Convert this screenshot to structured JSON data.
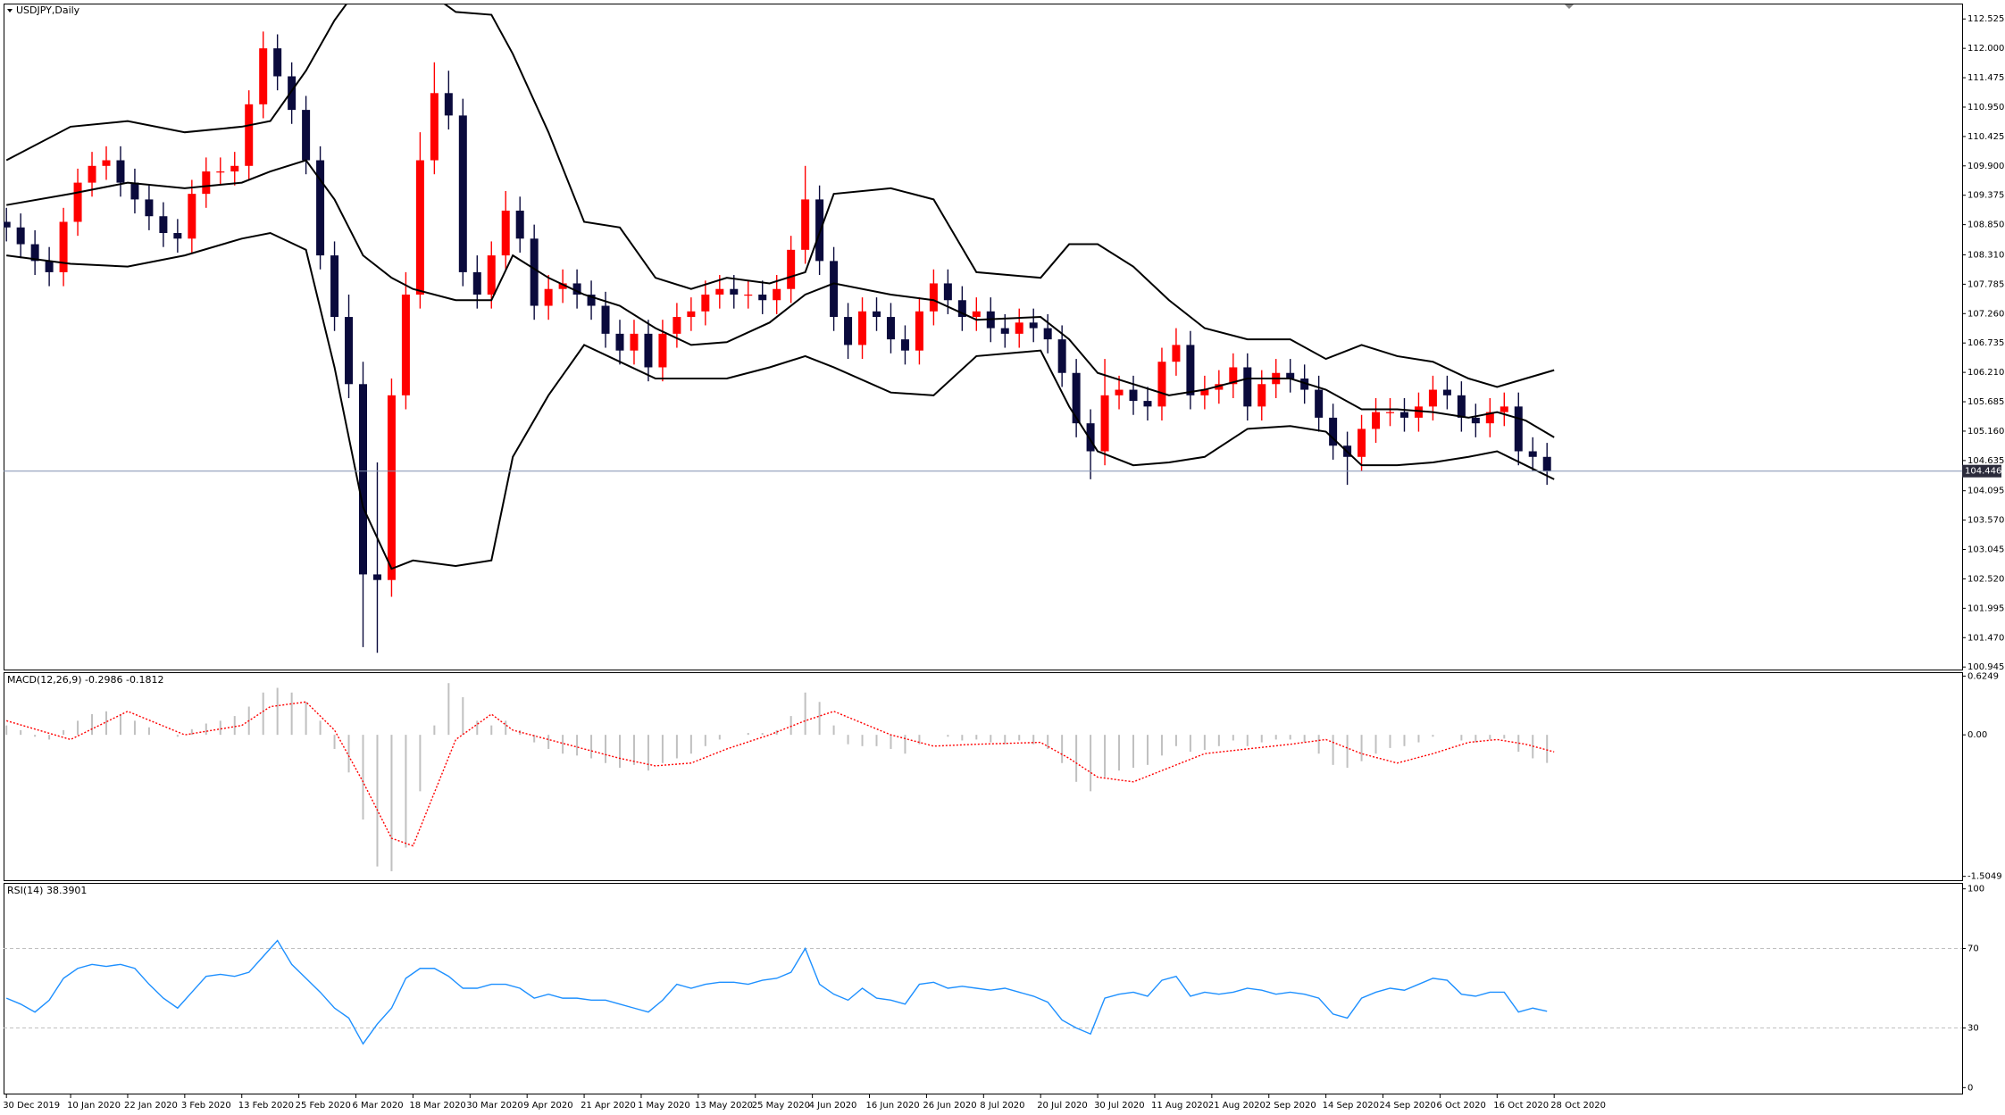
{
  "chart_data": [
    {
      "type": "candlestick",
      "title": "USDJPY,Daily",
      "xlim": [
        -0.4,
        274.2
      ],
      "ylim": [
        100.9,
        112.8
      ],
      "yticks": [
        112.525,
        {
          "value": 112.0,
          "label": "112.000"
        },
        111.475,
        {
          "value": 110.95,
          "label": "110.950"
        },
        110.425,
        {
          "value": 109.9,
          "label": "109.900"
        },
        109.375,
        {
          "value": 108.85,
          "label": "108.850"
        },
        {
          "value": 108.31,
          "label": "108.310"
        },
        107.785,
        {
          "value": 107.26,
          "label": "107.260"
        },
        106.735,
        {
          "value": 106.21,
          "label": "106.210"
        },
        105.685,
        {
          "value": 105.16,
          "label": "105.160"
        },
        104.635,
        104.095,
        {
          "value": 103.57,
          "label": "103.570"
        },
        103.045,
        {
          "value": 102.52,
          "label": "102.520"
        },
        101.995,
        {
          "value": 101.47,
          "label": "101.470"
        },
        100.945
      ],
      "current_price": 104.446,
      "price_line_color": "#8090b0",
      "up_color": "#ff0000",
      "down_color": "#0a0a3c",
      "x": [
        0,
        2,
        4,
        6,
        8,
        10,
        12,
        14,
        16,
        18,
        20,
        22,
        24,
        26,
        28,
        30,
        32,
        34,
        36,
        38,
        40,
        42,
        44,
        46,
        48,
        50,
        52,
        54,
        56,
        58,
        60,
        62,
        64,
        66,
        68,
        70,
        72,
        74,
        76,
        78,
        80,
        82,
        84,
        86,
        88,
        90,
        92,
        94,
        96,
        98,
        100,
        102,
        104,
        106,
        108,
        110,
        112,
        114,
        116,
        118,
        120,
        122,
        124,
        126,
        128,
        130,
        132,
        134,
        136,
        138,
        140,
        142,
        144,
        146,
        148,
        150,
        152,
        154,
        156,
        158,
        160,
        162,
        164,
        166,
        168,
        170,
        172,
        174,
        176,
        178,
        180,
        182,
        184,
        186,
        188,
        190,
        192,
        194,
        196,
        198,
        200,
        202,
        204,
        206,
        208,
        210,
        212,
        214,
        216
      ],
      "open": [
        108.9,
        108.8,
        108.5,
        108.2,
        108.0,
        108.9,
        109.6,
        109.9,
        110.0,
        109.6,
        109.3,
        109.0,
        108.7,
        108.6,
        109.4,
        109.8,
        109.8,
        109.9,
        111.0,
        112.0,
        111.5,
        110.9,
        110.0,
        108.3,
        107.2,
        106.0,
        102.6,
        102.5,
        105.8,
        107.6,
        110.0,
        111.2,
        110.8,
        108.0,
        107.6,
        108.3,
        109.1,
        108.6,
        107.4,
        107.7,
        107.8,
        107.6,
        107.4,
        106.9,
        106.6,
        106.9,
        106.3,
        106.9,
        107.2,
        107.3,
        107.6,
        107.7,
        107.6,
        107.6,
        107.5,
        107.7,
        108.4,
        109.3,
        108.2,
        107.2,
        106.7,
        107.3,
        107.2,
        106.8,
        106.6,
        107.3,
        107.8,
        107.5,
        107.2,
        107.3,
        107.0,
        106.9,
        107.1,
        107.0,
        106.8,
        106.2,
        105.3,
        104.8,
        105.8,
        105.9,
        105.7,
        105.6,
        106.4,
        106.7,
        105.8,
        105.9,
        106.0,
        106.3,
        105.6,
        106.0,
        106.2,
        106.1,
        105.9,
        105.4,
        104.9,
        104.7,
        105.2,
        105.5,
        105.5,
        105.4,
        105.6,
        105.9,
        105.8,
        105.4,
        105.3,
        105.5,
        105.6,
        104.8,
        104.7
      ],
      "high": [
        109.15,
        109.05,
        108.75,
        108.45,
        109.15,
        109.85,
        110.15,
        110.25,
        110.25,
        109.85,
        109.55,
        109.25,
        108.95,
        109.65,
        110.05,
        110.05,
        110.15,
        111.25,
        112.3,
        112.25,
        111.75,
        111.15,
        110.25,
        108.55,
        107.6,
        106.4,
        104.6,
        106.1,
        108.0,
        110.5,
        111.75,
        111.6,
        111.1,
        108.3,
        108.55,
        109.45,
        109.35,
        108.85,
        107.95,
        108.05,
        108.05,
        107.85,
        107.65,
        107.15,
        107.15,
        107.15,
        107.15,
        107.45,
        107.55,
        107.85,
        107.95,
        107.95,
        107.85,
        107.85,
        107.95,
        108.65,
        109.9,
        109.55,
        108.45,
        107.45,
        107.55,
        107.55,
        107.45,
        107.05,
        107.55,
        108.05,
        108.05,
        107.75,
        107.55,
        107.55,
        107.25,
        107.35,
        107.35,
        107.25,
        107.05,
        106.45,
        105.55,
        106.45,
        106.15,
        106.15,
        105.95,
        106.65,
        107.0,
        106.95,
        106.15,
        106.25,
        106.55,
        106.55,
        106.25,
        106.45,
        106.45,
        106.35,
        106.15,
        105.65,
        105.15,
        105.45,
        105.75,
        105.75,
        105.75,
        105.85,
        106.15,
        106.15,
        106.05,
        105.65,
        105.75,
        105.85,
        105.85,
        105.05,
        104.95
      ],
      "low": [
        108.55,
        108.25,
        107.95,
        107.75,
        107.75,
        108.65,
        109.35,
        109.65,
        109.35,
        109.05,
        108.75,
        108.45,
        108.35,
        108.35,
        109.15,
        109.55,
        109.55,
        109.65,
        110.75,
        111.25,
        110.65,
        109.75,
        108.05,
        106.95,
        105.75,
        101.3,
        101.2,
        102.2,
        105.55,
        107.35,
        109.75,
        110.55,
        107.75,
        107.35,
        107.35,
        108.05,
        108.35,
        107.15,
        107.15,
        107.45,
        107.35,
        107.15,
        106.65,
        106.35,
        106.35,
        106.05,
        106.05,
        106.65,
        106.95,
        107.05,
        107.35,
        107.35,
        107.35,
        107.25,
        107.25,
        107.45,
        108.15,
        107.95,
        106.95,
        106.45,
        106.45,
        106.95,
        106.55,
        106.35,
        106.35,
        107.05,
        107.25,
        106.95,
        106.95,
        106.75,
        106.65,
        106.65,
        106.75,
        106.55,
        105.95,
        105.05,
        104.3,
        104.55,
        105.55,
        105.45,
        105.35,
        105.35,
        106.15,
        105.55,
        105.55,
        105.65,
        105.75,
        105.35,
        105.35,
        105.75,
        105.85,
        105.65,
        105.15,
        104.65,
        104.2,
        104.45,
        104.95,
        105.25,
        105.15,
        105.15,
        105.35,
        105.55,
        105.15,
        105.05,
        105.05,
        105.25,
        104.55,
        104.45,
        104.2
      ],
      "close": [
        108.8,
        108.5,
        108.2,
        108.0,
        108.9,
        109.6,
        109.9,
        110.0,
        109.6,
        109.3,
        109.0,
        108.7,
        108.6,
        109.4,
        109.8,
        109.8,
        109.9,
        111.0,
        112.0,
        111.5,
        110.9,
        110.0,
        108.3,
        107.2,
        106.0,
        102.6,
        102.5,
        105.8,
        107.6,
        110.0,
        111.2,
        110.8,
        108.0,
        107.6,
        108.3,
        109.1,
        108.6,
        107.4,
        107.7,
        107.8,
        107.6,
        107.4,
        106.9,
        106.6,
        106.9,
        106.3,
        106.9,
        107.2,
        107.3,
        107.6,
        107.7,
        107.6,
        107.6,
        107.5,
        107.7,
        108.4,
        109.3,
        108.2,
        107.2,
        106.7,
        107.3,
        107.2,
        106.8,
        106.6,
        107.3,
        107.8,
        107.5,
        107.2,
        107.3,
        107.0,
        106.9,
        107.1,
        107.0,
        106.8,
        106.2,
        105.3,
        104.8,
        105.8,
        105.9,
        105.7,
        105.6,
        106.4,
        106.7,
        105.8,
        105.9,
        106.0,
        106.3,
        105.6,
        106.0,
        106.2,
        106.1,
        105.9,
        105.4,
        104.9,
        104.7,
        105.2,
        105.5,
        105.5,
        105.4,
        105.6,
        105.9,
        105.8,
        105.4,
        105.3,
        105.5,
        105.6,
        104.8,
        104.7,
        104.45
      ],
      "band_x": [
        0,
        9,
        17,
        25,
        33,
        37,
        42,
        46,
        50,
        54,
        57,
        63,
        68,
        71,
        76,
        81,
        86,
        91,
        96,
        101,
        107,
        112,
        116,
        124,
        130,
        136,
        145,
        149,
        153,
        158,
        163,
        168,
        174,
        180,
        185,
        190,
        195,
        200,
        205,
        209,
        213,
        217
      ],
      "bands": [
        {
          "color": "#000000",
          "values": [
            110.0,
            110.6,
            110.7,
            110.5,
            110.6,
            110.7,
            111.6,
            112.5,
            113.2,
            113.5,
            113.2,
            112.65,
            112.6,
            111.9,
            110.5,
            108.9,
            108.8,
            107.9,
            107.7,
            107.9,
            107.8,
            108.0,
            109.4,
            109.5,
            109.3,
            108.0,
            107.9,
            108.5,
            108.5,
            108.1,
            107.5,
            107.0,
            106.8,
            106.8,
            106.45,
            106.7,
            106.5,
            106.4,
            106.1,
            105.95,
            106.1,
            106.25
          ]
        },
        {
          "color": "#000000",
          "values": [
            109.2,
            109.4,
            109.6,
            109.5,
            109.6,
            109.8,
            110.0,
            109.3,
            108.3,
            107.9,
            107.7,
            107.5,
            107.5,
            108.3,
            107.9,
            107.6,
            107.4,
            107.0,
            106.7,
            106.75,
            107.1,
            107.6,
            107.8,
            107.6,
            107.5,
            107.15,
            107.2,
            106.8,
            106.2,
            106.0,
            105.8,
            105.9,
            106.1,
            106.1,
            105.9,
            105.55,
            105.55,
            105.5,
            105.4,
            105.5,
            105.35,
            105.05
          ]
        },
        {
          "color": "#000000",
          "values": [
            108.3,
            108.15,
            108.1,
            108.3,
            108.6,
            108.7,
            108.4,
            106.3,
            103.8,
            102.7,
            102.85,
            102.75,
            102.85,
            104.7,
            105.8,
            106.7,
            106.4,
            106.1,
            106.1,
            106.1,
            106.3,
            106.5,
            106.3,
            105.85,
            105.8,
            106.5,
            106.6,
            105.6,
            104.8,
            104.55,
            104.6,
            104.7,
            105.2,
            105.25,
            105.15,
            104.55,
            104.55,
            104.6,
            104.7,
            104.8,
            104.55,
            104.3
          ]
        }
      ]
    },
    {
      "type": "macd",
      "title": "MACD(12,26,9) -0.2986 -0.1812",
      "xlim": [
        -0.4,
        274.2
      ],
      "ylim": [
        -1.546,
        0.666
      ],
      "yticks": [
        0.6249,
        {
          "value": 0,
          "label": "0.00"
        },
        -1.5049
      ],
      "hist_color": "#c0c0c0",
      "signal_color": "#ff0000",
      "histogram": [
        0.1,
        0.05,
        -0.02,
        -0.05,
        0.05,
        0.15,
        0.22,
        0.25,
        0.22,
        0.15,
        0.08,
        0.0,
        -0.02,
        0.06,
        0.12,
        0.15,
        0.2,
        0.3,
        0.45,
        0.5,
        0.45,
        0.35,
        0.15,
        -0.15,
        -0.4,
        -0.9,
        -1.4,
        -1.45,
        -1.2,
        -0.6,
        0.1,
        0.55,
        0.4,
        0.15,
        0.1,
        0.15,
        0.05,
        -0.08,
        -0.15,
        -0.2,
        -0.22,
        -0.25,
        -0.3,
        -0.35,
        -0.32,
        -0.38,
        -0.3,
        -0.25,
        -0.2,
        -0.12,
        -0.05,
        0.0,
        0.02,
        0.02,
        0.05,
        0.2,
        0.45,
        0.35,
        0.1,
        -0.1,
        -0.12,
        -0.12,
        -0.15,
        -0.2,
        -0.1,
        0.0,
        -0.02,
        -0.06,
        -0.05,
        -0.08,
        -0.1,
        -0.06,
        -0.1,
        -0.15,
        -0.3,
        -0.5,
        -0.6,
        -0.45,
        -0.38,
        -0.35,
        -0.32,
        -0.22,
        -0.12,
        -0.18,
        -0.16,
        -0.12,
        -0.06,
        -0.12,
        -0.08,
        -0.05,
        -0.05,
        -0.08,
        -0.2,
        -0.32,
        -0.35,
        -0.28,
        -0.2,
        -0.14,
        -0.12,
        -0.08,
        -0.02,
        0.0,
        -0.06,
        -0.08,
        -0.05,
        -0.04,
        -0.18,
        -0.25,
        -0.2986
      ],
      "signal": [
        0.15,
        -0.05,
        0.25,
        0.0,
        0.1,
        0.3,
        0.35,
        0.05,
        -0.5,
        -1.1,
        -1.18,
        -0.05,
        0.22,
        0.05,
        -0.05,
        -0.15,
        -0.25,
        -0.33,
        -0.3,
        -0.15,
        0.0,
        0.15,
        0.25,
        0.0,
        -0.12,
        -0.1,
        -0.08,
        -0.25,
        -0.45,
        -0.5,
        -0.35,
        -0.2,
        -0.15,
        -0.1,
        -0.05,
        -0.2,
        -0.3,
        -0.2,
        -0.08,
        -0.05,
        -0.1,
        -0.1812
      ]
    },
    {
      "type": "line",
      "title": "RSI(14) 38.3901",
      "xlim": [
        -0.4,
        274.2
      ],
      "ylim": [
        -3,
        103
      ],
      "yticks": [
        100,
        70,
        30,
        0
      ],
      "levels": [
        70,
        30
      ],
      "color": "#1e90ff",
      "values": [
        45,
        42,
        38,
        44,
        55,
        60,
        62,
        61,
        62,
        60,
        52,
        45,
        40,
        48,
        56,
        57,
        56,
        58,
        66,
        74,
        62,
        55,
        48,
        40,
        35,
        22,
        32,
        40,
        55,
        60,
        60,
        56,
        50,
        50,
        52,
        52,
        50,
        45,
        47,
        45,
        45,
        44,
        44,
        42,
        40,
        38,
        44,
        52,
        50,
        52,
        53,
        53,
        52,
        54,
        55,
        58,
        70,
        52,
        47,
        44,
        50,
        45,
        44,
        42,
        52,
        53,
        50,
        51,
        50,
        49,
        50,
        48,
        46,
        43,
        34,
        30,
        27,
        45,
        47,
        48,
        46,
        54,
        56,
        46,
        48,
        47,
        48,
        50,
        49,
        47,
        48,
        47,
        45,
        37,
        35,
        45,
        48,
        50,
        49,
        52,
        55,
        54,
        47,
        46,
        48,
        48,
        38,
        40,
        38.39
      ],
      "xticks": [
        {
          "value": 0,
          "label": "30 Dec 2019"
        },
        {
          "value": 9,
          "label": "10 Jan 2020"
        },
        {
          "value": 17,
          "label": "22 Jan 2020"
        },
        {
          "value": 25,
          "label": "3 Feb 2020"
        },
        {
          "value": 33,
          "label": "13 Feb 2020"
        },
        {
          "value": 41,
          "label": "25 Feb 2020"
        },
        {
          "value": 49,
          "label": "6 Mar 2020"
        },
        {
          "value": 57,
          "label": "18 Mar 2020"
        },
        {
          "value": 65,
          "label": "30 Mar 2020"
        },
        {
          "value": 73,
          "label": "9 Apr 2020"
        },
        {
          "value": 81,
          "label": "21 Apr 2020"
        },
        {
          "value": 89,
          "label": "1 May 2020"
        },
        {
          "value": 97,
          "label": "13 May 2020"
        },
        {
          "value": 105,
          "label": "25 May 2020"
        },
        {
          "value": 113,
          "label": "4 Jun 2020"
        },
        {
          "value": 121,
          "label": "16 Jun 2020"
        },
        {
          "value": 129,
          "label": "26 Jun 2020"
        },
        {
          "value": 137,
          "label": "8 Jul 2020"
        },
        {
          "value": 145,
          "label": "20 Jul 2020"
        },
        {
          "value": 153,
          "label": "30 Jul 2020"
        },
        {
          "value": 161,
          "label": "11 Aug 2020"
        },
        {
          "value": 169,
          "label": "21 Aug 2020"
        },
        {
          "value": 177,
          "label": "2 Sep 2020"
        },
        {
          "value": 185,
          "label": "14 Sep 2020"
        },
        {
          "value": 193,
          "label": "24 Sep 2020"
        },
        {
          "value": 201,
          "label": "6 Oct 2020"
        },
        {
          "value": 209,
          "label": "16 Oct 2020"
        },
        {
          "value": 217,
          "label": "28 Oct 2020"
        }
      ]
    }
  ]
}
